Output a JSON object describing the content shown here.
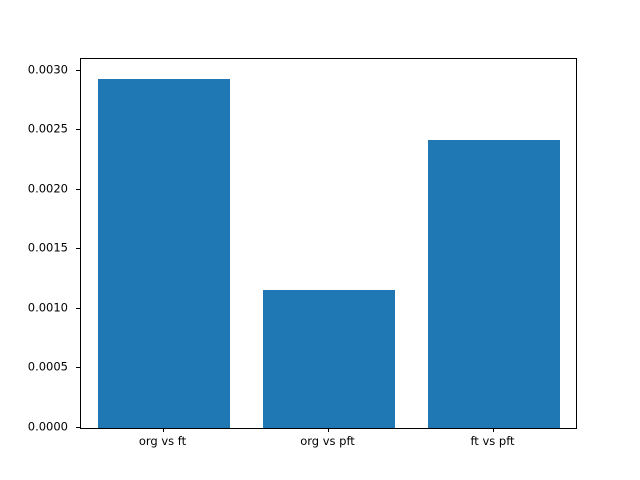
{
  "chart_data": {
    "type": "bar",
    "categories": [
      "org vs ft",
      "org vs pft",
      "ft vs pft"
    ],
    "values": [
      0.00293,
      0.00116,
      0.00242
    ],
    "title": "",
    "xlabel": "",
    "ylabel": "",
    "ylim": [
      0,
      0.0031
    ],
    "yticks": [
      0.0,
      0.0005,
      0.001,
      0.0015,
      0.002,
      0.0025,
      0.003
    ],
    "ytick_labels": [
      "0.0000",
      "0.0005",
      "0.0010",
      "0.0015",
      "0.0020",
      "0.0025",
      "0.0030"
    ],
    "bar_color": "#1f77b4",
    "bar_width_fraction": 0.8,
    "grid": false,
    "legend": "none",
    "background": "#ffffff"
  }
}
